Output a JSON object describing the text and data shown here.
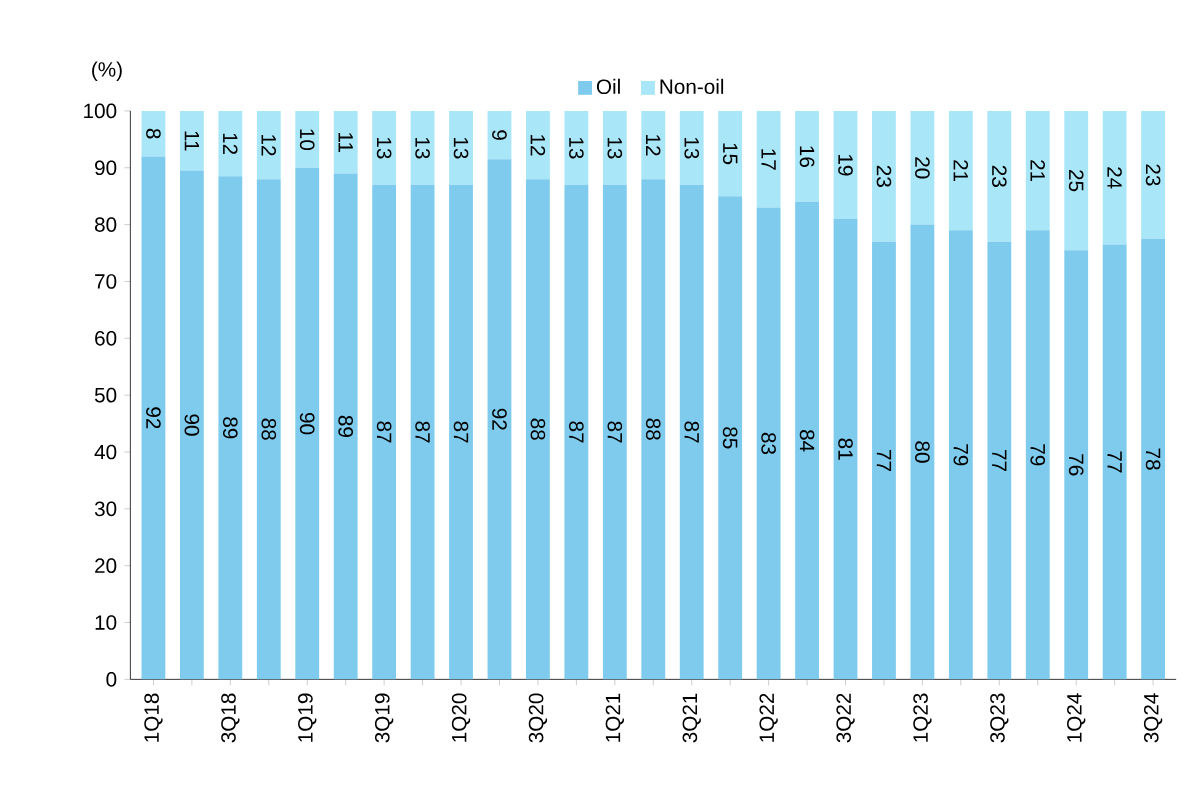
{
  "chart_data": {
    "type": "bar",
    "stacked": true,
    "ylabel": "(%)",
    "categories": [
      "1Q18",
      null,
      "3Q18",
      null,
      "1Q19",
      null,
      "3Q19",
      null,
      "1Q20",
      null,
      "3Q20",
      null,
      "1Q21",
      null,
      "3Q21",
      null,
      "1Q22",
      null,
      "3Q22",
      null,
      "1Q23",
      null,
      "3Q23",
      null,
      "1Q24",
      null,
      "3Q24"
    ],
    "series": [
      {
        "name": "Oil",
        "color": "#7fcbed",
        "values": [
          92,
          89.5,
          88.5,
          88,
          90,
          89,
          87,
          87,
          87,
          91.5,
          88,
          87,
          87,
          88,
          87,
          85,
          83,
          84,
          81,
          77,
          80,
          79,
          77,
          79,
          75.5,
          76.5,
          77.5
        ],
        "value_labels": [
          "92",
          "90",
          "89",
          "88",
          "90",
          "89",
          "87",
          "87",
          "87",
          "92",
          "88",
          "87",
          "87",
          "88",
          "87",
          "85",
          "83",
          "84",
          "81",
          "77",
          "80",
          "79",
          "77",
          "79",
          "76",
          "77",
          "78"
        ]
      },
      {
        "name": "Non-oil",
        "color": "#a9e6f8",
        "values": [
          8,
          10.5,
          11.5,
          12,
          10,
          11,
          13,
          13,
          13,
          8.5,
          12,
          13,
          13,
          12,
          13,
          15,
          17,
          16,
          19,
          23,
          20,
          21,
          23,
          21,
          24.5,
          23.5,
          22.5
        ],
        "value_labels": [
          "8",
          "11",
          "12",
          "12",
          "10",
          "11",
          "13",
          "13",
          "13",
          "9",
          "12",
          "13",
          "13",
          "12",
          "13",
          "15",
          "17",
          "16",
          "19",
          "23",
          "20",
          "21",
          "23",
          "21",
          "25",
          "24",
          "23"
        ]
      }
    ],
    "ylim": [
      0,
      100
    ],
    "yticks": [
      0,
      10,
      20,
      30,
      40,
      50,
      60,
      70,
      80,
      90,
      100
    ],
    "legend": "top"
  }
}
